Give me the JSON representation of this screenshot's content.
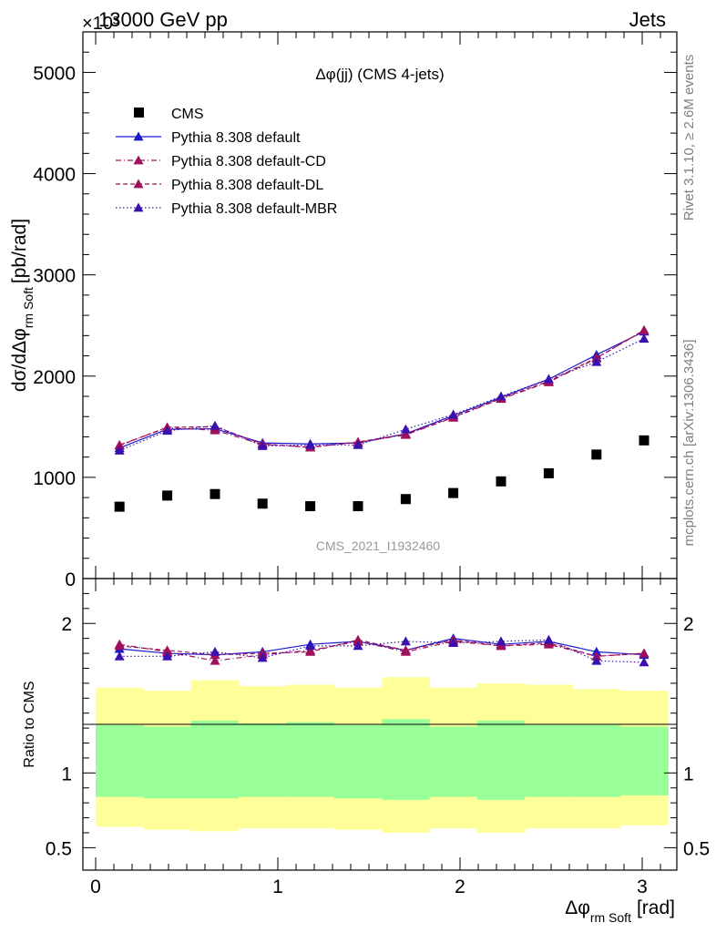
{
  "header": {
    "left": "13000 GeV pp",
    "right": "Jets",
    "exponent": "×10³"
  },
  "side_labels": {
    "rivet": "Rivet 3.1.10, ≥ 2.6M events",
    "mcplots": "mcplots.cern.ch [arXiv:1306.3436]"
  },
  "watermark": "CMS_2021_I1932460",
  "chart_data": [
    {
      "type": "line",
      "panel": "main",
      "title": "Δφ(jj) (CMS 4-jets)",
      "ylabel": "dσ/dΔφ_rm Soft [pb/rad]",
      "ylabel_main": "dσ/dΔφ",
      "ylabel_sub": "rm Soft",
      "ylabel_unit": "[pb/rad]",
      "xlabel": "Δφ_rm Soft [rad]",
      "xlim": [
        -0.07,
        3.19
      ],
      "ylim": [
        0,
        5400
      ],
      "yticks": [
        0,
        1000,
        2000,
        3000,
        4000,
        5000
      ],
      "ytick_labels": [
        "0",
        "1000",
        "2000",
        "3000",
        "4000",
        "5000"
      ],
      "legend_position": "top-left",
      "x": [
        0.131,
        0.393,
        0.655,
        0.916,
        1.178,
        1.44,
        1.702,
        1.963,
        2.225,
        2.487,
        2.749,
        3.01
      ],
      "x_edges": [
        0,
        0.262,
        0.524,
        0.785,
        1.047,
        1.309,
        1.571,
        1.833,
        2.094,
        2.356,
        2.618,
        2.88,
        3.142
      ],
      "series": [
        {
          "name": "CMS",
          "color": "#000000",
          "marker": "square",
          "line": "none",
          "values": [
            710,
            820,
            835,
            740,
            715,
            715,
            785,
            845,
            960,
            1040,
            1225,
            1365
          ]
        },
        {
          "name": "Pythia 8.308 default",
          "color": "#1a1acc",
          "marker": "triangle",
          "line": "solid",
          "values": [
            1290,
            1475,
            1480,
            1340,
            1330,
            1340,
            1430,
            1610,
            1790,
            1970,
            2210,
            2440
          ]
        },
        {
          "name": "Pythia 8.308 default-CD",
          "color": "#a0105a",
          "marker": "triangle",
          "line": "dashdot",
          "values": [
            1320,
            1490,
            1465,
            1325,
            1300,
            1345,
            1420,
            1590,
            1775,
            1940,
            2175,
            2455
          ]
        },
        {
          "name": "Pythia 8.308 default-DL",
          "color": "#a0105a",
          "marker": "triangle",
          "line": "dashed",
          "values": [
            1315,
            1495,
            1500,
            1330,
            1295,
            1350,
            1425,
            1595,
            1780,
            1950,
            2180,
            2450
          ]
        },
        {
          "name": "Pythia 8.308 default-MBR",
          "color": "#3a10b0",
          "marker": "triangle",
          "line": "dotted",
          "values": [
            1265,
            1460,
            1510,
            1310,
            1320,
            1320,
            1475,
            1620,
            1800,
            1970,
            2140,
            2370
          ]
        }
      ]
    },
    {
      "type": "line",
      "panel": "ratio",
      "ylabel": "Ratio to CMS",
      "ylim": [
        0.35,
        2.3
      ],
      "yticks": [
        0.5,
        1,
        2
      ],
      "ytick_labels": [
        "0.5",
        "1",
        "2"
      ],
      "xticks": [
        0,
        1,
        2,
        3
      ],
      "xtick_labels": [
        "0",
        "1",
        "2",
        "3"
      ],
      "x": [
        0.131,
        0.393,
        0.655,
        0.916,
        1.178,
        1.44,
        1.702,
        1.963,
        2.225,
        2.487,
        2.749,
        3.01
      ],
      "bands": {
        "yellow_low": [
          0.64,
          0.62,
          0.61,
          0.63,
          0.63,
          0.62,
          0.6,
          0.63,
          0.6,
          0.63,
          0.63,
          0.65
        ],
        "yellow_high": [
          1.57,
          1.55,
          1.62,
          1.58,
          1.59,
          1.57,
          1.64,
          1.57,
          1.6,
          1.59,
          1.56,
          1.55
        ],
        "green_low": [
          0.84,
          0.83,
          0.83,
          0.84,
          0.84,
          0.83,
          0.82,
          0.84,
          0.82,
          0.84,
          0.84,
          0.85
        ],
        "green_high": [
          1.32,
          1.31,
          1.35,
          1.33,
          1.34,
          1.32,
          1.36,
          1.31,
          1.35,
          1.32,
          1.32,
          1.31
        ],
        "yellow_color": "#ffff99",
        "green_color": "#99ff99"
      },
      "series": [
        {
          "name": "Pythia 8.308 default",
          "color": "#1a1acc",
          "line": "solid",
          "values": [
            1.83,
            1.8,
            1.79,
            1.81,
            1.86,
            1.88,
            1.82,
            1.9,
            1.86,
            1.88,
            1.81,
            1.79
          ]
        },
        {
          "name": "Pythia 8.308 default-CD",
          "color": "#a0105a",
          "line": "dashdot",
          "values": [
            1.86,
            1.81,
            1.75,
            1.79,
            1.82,
            1.88,
            1.81,
            1.88,
            1.85,
            1.86,
            1.78,
            1.8
          ]
        },
        {
          "name": "Pythia 8.308 default-DL",
          "color": "#a0105a",
          "line": "dashed",
          "values": [
            1.85,
            1.82,
            1.79,
            1.8,
            1.81,
            1.89,
            1.82,
            1.89,
            1.85,
            1.87,
            1.78,
            1.8
          ]
        },
        {
          "name": "Pythia 8.308 default-MBR",
          "color": "#3a10b0",
          "line": "dotted",
          "values": [
            1.78,
            1.78,
            1.81,
            1.77,
            1.85,
            1.85,
            1.88,
            1.87,
            1.88,
            1.89,
            1.75,
            1.74
          ]
        }
      ]
    }
  ]
}
